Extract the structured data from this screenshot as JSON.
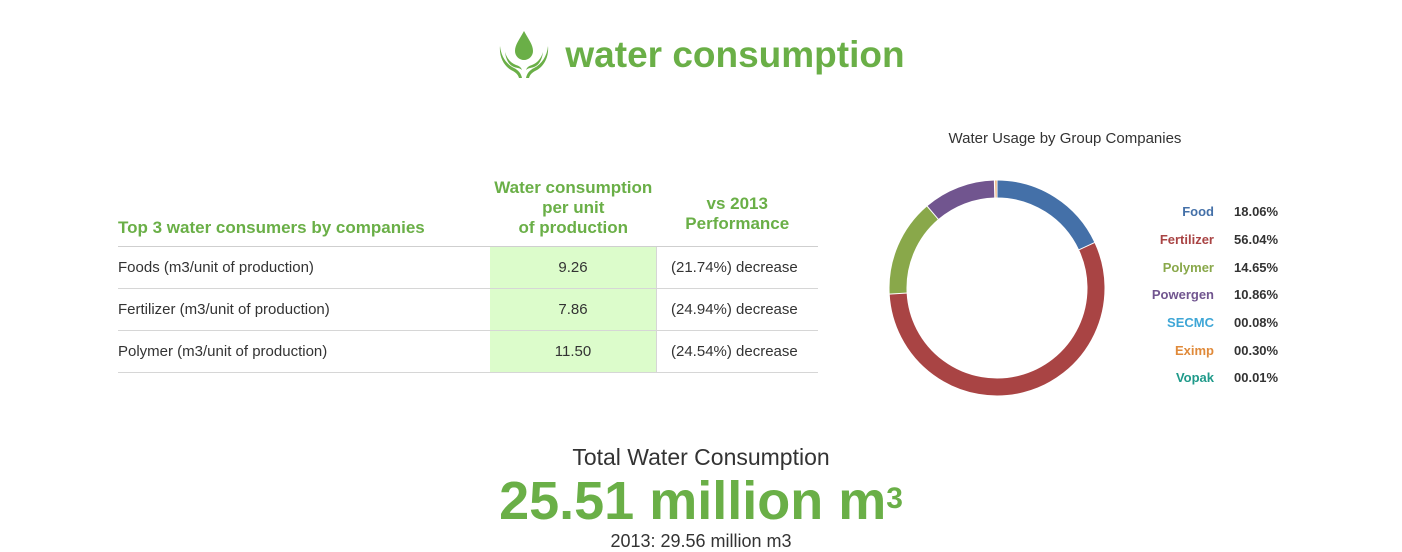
{
  "header": {
    "title": "water consumption",
    "icon": "water-drop-hands-icon",
    "color": "#6aaf47"
  },
  "table": {
    "headers": {
      "col1": "Top 3 water consumers by companies",
      "col2": [
        "Water consumption",
        "per unit",
        "of production"
      ],
      "col3": [
        "vs 2013",
        "Performance"
      ]
    },
    "rows": [
      {
        "label": "Foods (m3/unit of production)",
        "value": "9.26",
        "performance": "(21.74%) decrease"
      },
      {
        "label": "Fertilizer (m3/unit of production)",
        "value": "7.86",
        "performance": "(24.94%) decrease"
      },
      {
        "label": "Polymer (m3/unit of production)",
        "value": "11.50",
        "performance": "(24.54%) decrease"
      }
    ]
  },
  "chart_data": {
    "type": "pie",
    "title": "Water Usage by Group Companies",
    "donut": true,
    "legend_position": "right",
    "series": [
      {
        "name": "Food",
        "value": 18.06,
        "label": "18.06%",
        "color": "#4470a8"
      },
      {
        "name": "Fertilizer",
        "value": 56.04,
        "label": "56.04%",
        "color": "#a94444"
      },
      {
        "name": "Polymer",
        "value": 14.65,
        "label": "14.65%",
        "color": "#89a84a"
      },
      {
        "name": "Powergen",
        "value": 10.86,
        "label": "10.86%",
        "color": "#71558f"
      },
      {
        "name": "SECMC",
        "value": 0.08,
        "label": "00.08%",
        "color": "#3ea6d6"
      },
      {
        "name": "Eximp",
        "value": 0.3,
        "label": "00.30%",
        "color": "#e08a3a"
      },
      {
        "name": "Vopak",
        "value": 0.01,
        "label": "00.01%",
        "color": "#1f9a8a"
      }
    ]
  },
  "total": {
    "label": "Total Water Consumption",
    "value": "25.51 million m",
    "superscript": "3",
    "previous": "2013: 29.56 million m3"
  }
}
